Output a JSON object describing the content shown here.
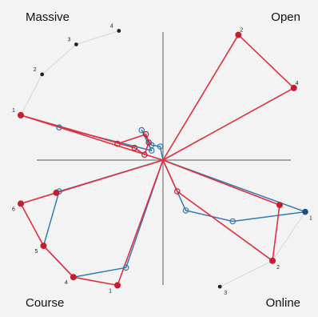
{
  "chart_data": {
    "type": "line",
    "quadrant_labels": [
      "Massive",
      "Open",
      "Course",
      "Online"
    ],
    "colors": {
      "background": "#f3f3f3",
      "axis": "#777777",
      "guide": "#d6d6d6",
      "red_series": "#e0303f",
      "red_marker": "#c41e2c",
      "blue_series": "#3479b5",
      "dark_marker": "#222222"
    },
    "series": [
      {
        "points": [
          {
            "x": -0.32,
            "y": 0.12
          },
          {
            "x": -0.12,
            "y": 0.19
          },
          {
            "x": -0.1,
            "y": 0.13
          },
          {
            "x": -0.13,
            "y": 0.04
          },
          {
            "x": -0.2,
            "y": 0.09
          },
          {
            "x": -1.0,
            "y": 0.33
          },
          {
            "x": 0,
            "y": 0
          },
          {
            "x": 0.53,
            "y": 0.92
          },
          {
            "x": 0.92,
            "y": 0.53
          },
          {
            "x": 0,
            "y": 0
          },
          {
            "x": 0.82,
            "y": -0.33
          },
          {
            "x": 0.77,
            "y": -0.74
          },
          {
            "x": 0.1,
            "y": -0.23
          },
          {
            "x": 0,
            "y": 0
          },
          {
            "x": -0.32,
            "y": -0.92
          },
          {
            "x": -0.63,
            "y": -0.86
          },
          {
            "x": -0.84,
            "y": -0.63
          },
          {
            "x": -1.0,
            "y": -0.32
          },
          {
            "x": -0.75,
            "y": -0.24
          },
          {
            "x": 0,
            "y": 0
          }
        ]
      },
      {
        "points": [
          {
            "x": -0.73,
            "y": 0.24
          },
          {
            "x": -0.08,
            "y": 0.07
          },
          {
            "x": -0.15,
            "y": 0.22
          },
          {
            "x": -0.08,
            "y": 0.11
          },
          {
            "x": -0.02,
            "y": 0.1
          },
          {
            "x": 0,
            "y": 0
          },
          {
            "x": 1.0,
            "y": -0.38
          },
          {
            "x": 0.49,
            "y": -0.45
          },
          {
            "x": 0.16,
            "y": -0.37
          },
          {
            "x": 0,
            "y": 0
          },
          {
            "x": -0.26,
            "y": -0.79
          },
          {
            "x": -0.63,
            "y": -0.86
          },
          {
            "x": -0.84,
            "y": -0.63
          },
          {
            "x": -0.73,
            "y": -0.23
          },
          {
            "x": 0,
            "y": 0
          }
        ]
      },
      {
        "points": [
          {
            "x": -1.0,
            "y": 0.33
          },
          {
            "x": -0.85,
            "y": 0.63
          },
          {
            "x": -0.61,
            "y": 0.85
          },
          {
            "x": -0.31,
            "y": 0.95
          }
        ],
        "point_labels": [
          "1",
          "2",
          "3",
          "4"
        ]
      },
      {
        "points": [
          {
            "x": 1.0,
            "y": -0.38
          },
          {
            "x": 0.77,
            "y": -0.74
          },
          {
            "x": 0.4,
            "y": -0.93
          }
        ],
        "point_labels": [
          "1",
          "2",
          "3"
        ]
      }
    ],
    "open_labels": [
      {
        "x": 0.53,
        "y": 0.92,
        "text": "2"
      },
      {
        "x": 0.92,
        "y": 0.53,
        "text": "4"
      }
    ],
    "course_labels": [
      {
        "x": -0.32,
        "y": -0.92,
        "text": "1"
      },
      {
        "x": -0.63,
        "y": -0.86,
        "text": "4"
      },
      {
        "x": -0.84,
        "y": -0.63,
        "text": "5"
      },
      {
        "x": -1.0,
        "y": -0.32,
        "text": "6"
      }
    ],
    "xlim": [
      -1.1,
      1.1
    ],
    "ylim": [
      -1.1,
      1.1
    ],
    "grid": false
  }
}
